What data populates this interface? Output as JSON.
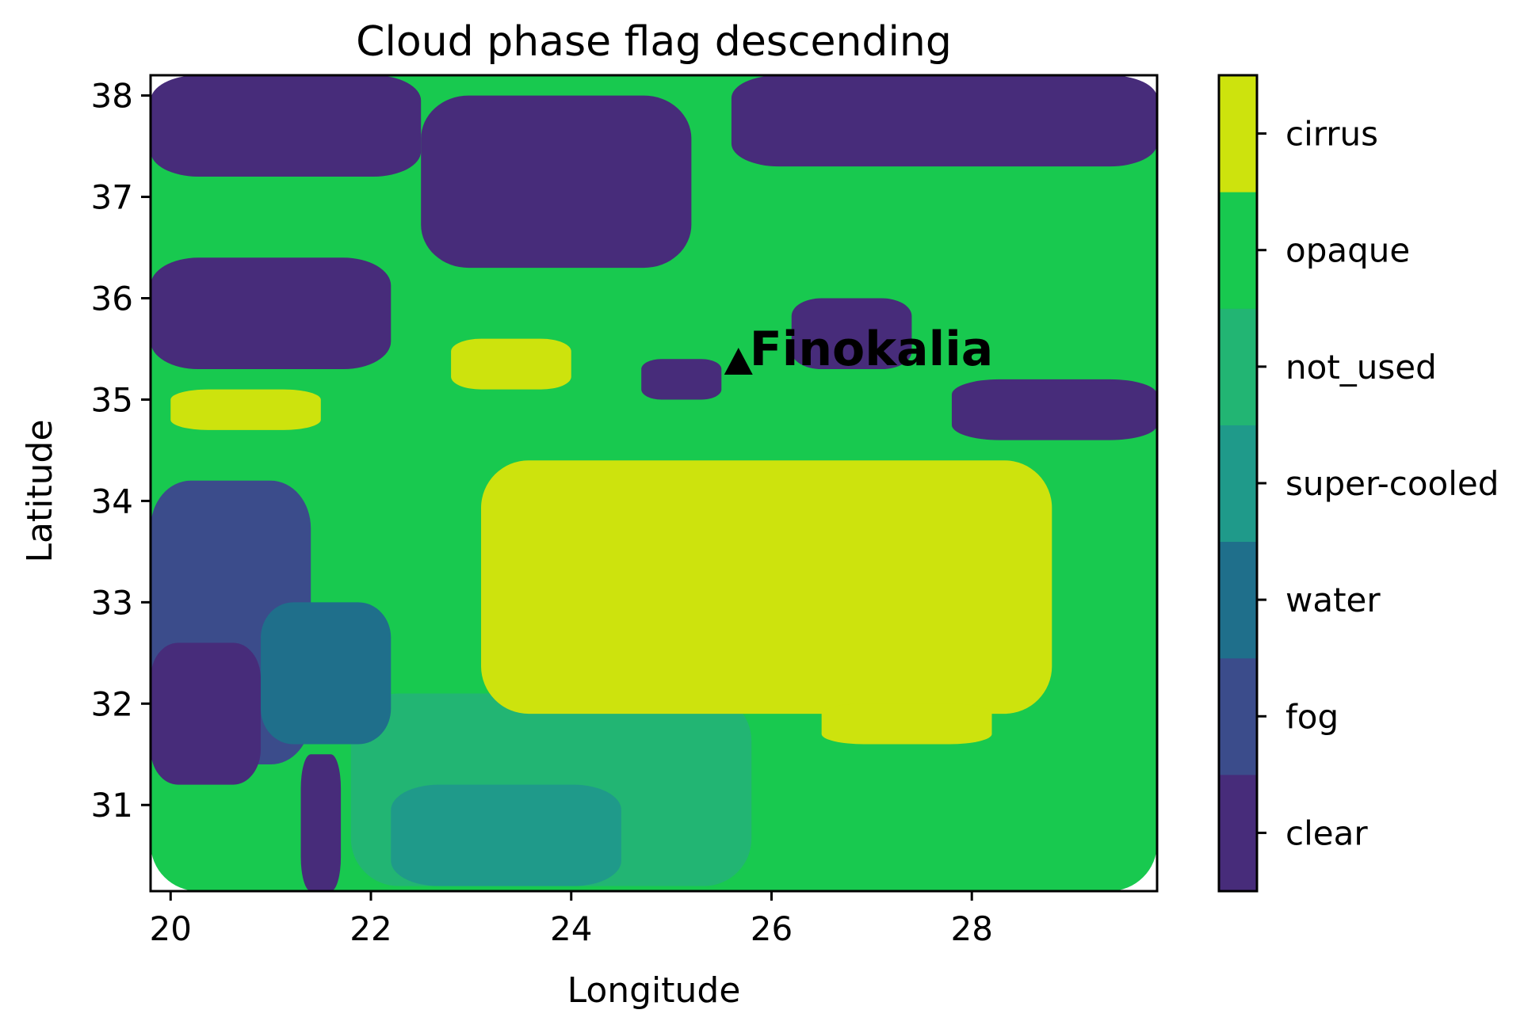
{
  "chart_data": {
    "type": "heatmap",
    "title": "Cloud phase flag descending",
    "xlabel": "Longitude",
    "ylabel": "Latitude",
    "xlim": [
      19.8,
      29.85
    ],
    "ylim": [
      30.15,
      38.2
    ],
    "xticks": [
      20,
      22,
      24,
      26,
      28
    ],
    "yticks": [
      31,
      32,
      33,
      34,
      35,
      36,
      37,
      38
    ],
    "grid": false,
    "colorbar": {
      "position": "right",
      "classes": [
        {
          "label": "clear",
          "color": "#472c7a"
        },
        {
          "label": "fog",
          "color": "#3b4c8b"
        },
        {
          "label": "water",
          "color": "#1f6f8b"
        },
        {
          "label": "super-cooled",
          "color": "#1f9a8a"
        },
        {
          "label": "not_used",
          "color": "#22b573"
        },
        {
          "label": "opaque",
          "color": "#18c94f"
        },
        {
          "label": "cirrus",
          "color": "#cde30d"
        }
      ]
    },
    "regions": [
      {
        "class": "opaque",
        "lon": [
          19.8,
          29.85
        ],
        "lat": [
          30.15,
          38.2
        ]
      },
      {
        "class": "not_used",
        "lon": [
          21.8,
          25.8
        ],
        "lat": [
          30.2,
          32.1
        ]
      },
      {
        "class": "super-cooled",
        "lon": [
          22.2,
          24.5
        ],
        "lat": [
          30.2,
          31.2
        ]
      },
      {
        "class": "fog",
        "lon": [
          19.8,
          21.4
        ],
        "lat": [
          31.4,
          34.2
        ]
      },
      {
        "class": "water",
        "lon": [
          20.9,
          22.2
        ],
        "lat": [
          31.6,
          33.0
        ]
      },
      {
        "class": "clear",
        "lon": [
          19.8,
          20.9
        ],
        "lat": [
          31.2,
          32.6
        ]
      },
      {
        "class": "clear",
        "lon": [
          19.8,
          22.5
        ],
        "lat": [
          37.2,
          38.2
        ]
      },
      {
        "class": "clear",
        "lon": [
          22.5,
          25.2
        ],
        "lat": [
          36.3,
          38.0
        ]
      },
      {
        "class": "clear",
        "lon": [
          25.6,
          29.85
        ],
        "lat": [
          37.3,
          38.2
        ]
      },
      {
        "class": "clear",
        "lon": [
          19.8,
          22.2
        ],
        "lat": [
          35.3,
          36.4
        ]
      },
      {
        "class": "clear",
        "lon": [
          24.7,
          25.5
        ],
        "lat": [
          35.0,
          35.4
        ]
      },
      {
        "class": "clear",
        "lon": [
          26.2,
          27.4
        ],
        "lat": [
          35.3,
          36.0
        ]
      },
      {
        "class": "clear",
        "lon": [
          27.8,
          29.85
        ],
        "lat": [
          34.6,
          35.2
        ]
      },
      {
        "class": "clear",
        "lon": [
          21.3,
          21.7
        ],
        "lat": [
          30.15,
          31.5
        ]
      },
      {
        "class": "cirrus",
        "lon": [
          23.1,
          28.8
        ],
        "lat": [
          31.9,
          34.4
        ]
      },
      {
        "class": "cirrus",
        "lon": [
          26.5,
          28.2
        ],
        "lat": [
          31.6,
          32.0
        ]
      },
      {
        "class": "cirrus",
        "lon": [
          22.8,
          24.0
        ],
        "lat": [
          35.1,
          35.6
        ]
      },
      {
        "class": "cirrus",
        "lon": [
          20.0,
          21.5
        ],
        "lat": [
          34.7,
          35.1
        ]
      }
    ],
    "annotations": [
      {
        "text": "Finokalia",
        "lon": 25.67,
        "lat": 35.34,
        "marker": "triangle",
        "bold": true
      }
    ]
  }
}
